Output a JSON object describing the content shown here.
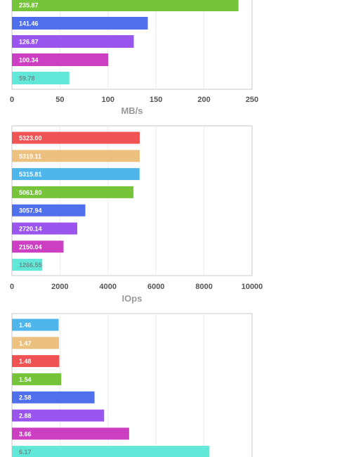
{
  "chart_data": [
    {
      "type": "bar",
      "orientation": "horizontal",
      "categories": [
        "",
        "",
        "",
        "",
        ""
      ],
      "values": [
        235.87,
        141.46,
        126.87,
        100.34,
        59.78
      ],
      "labels": [
        "235.87",
        "141.46",
        "126.87",
        "100.34",
        "59.78"
      ],
      "colors": [
        "#76c43a",
        "#4f6fec",
        "#9b55ef",
        "#cc3fc2",
        "#62e8d8"
      ],
      "xlim": [
        0,
        250
      ],
      "xticks": [
        "0",
        "50",
        "100",
        "150",
        "200",
        "250"
      ],
      "xlabel": "MB/s",
      "grid": true
    },
    {
      "type": "bar",
      "orientation": "horizontal",
      "categories": [
        "",
        "",
        "",
        "",
        "",
        "",
        "",
        ""
      ],
      "values": [
        5323.0,
        5319.11,
        5315.81,
        5061.8,
        3057.94,
        2720.14,
        2150.04,
        1266.55
      ],
      "labels": [
        "5323.00",
        "5319.11",
        "5315.81",
        "5061.80",
        "3057.94",
        "2720.14",
        "2150.04",
        "1266.55"
      ],
      "colors": [
        "#ef5353",
        "#ecc07e",
        "#4fb6ec",
        "#76c43a",
        "#4f6fec",
        "#9b55ef",
        "#cc3fc2",
        "#62e8d8"
      ],
      "xlim": [
        0,
        10000
      ],
      "xticks": [
        "0",
        "2000",
        "4000",
        "6000",
        "8000",
        "10000"
      ],
      "xlabel": "IOps",
      "grid": true
    },
    {
      "type": "bar",
      "orientation": "horizontal",
      "categories": [
        "",
        "",
        "",
        "",
        "",
        "",
        "",
        ""
      ],
      "values": [
        1.46,
        1.47,
        1.48,
        1.54,
        2.58,
        2.88,
        3.66,
        6.17
      ],
      "labels": [
        "1.46",
        "1.47",
        "1.48",
        "1.54",
        "2.58",
        "2.88",
        "3.66",
        "6.17"
      ],
      "colors": [
        "#4fb6ec",
        "#ecc07e",
        "#ef5353",
        "#76c43a",
        "#4f6fec",
        "#9b55ef",
        "#cc3fc2",
        "#62e8d8"
      ],
      "xlim": [
        0,
        7.5
      ],
      "xticks": [],
      "xlabel": "",
      "grid": true
    }
  ]
}
